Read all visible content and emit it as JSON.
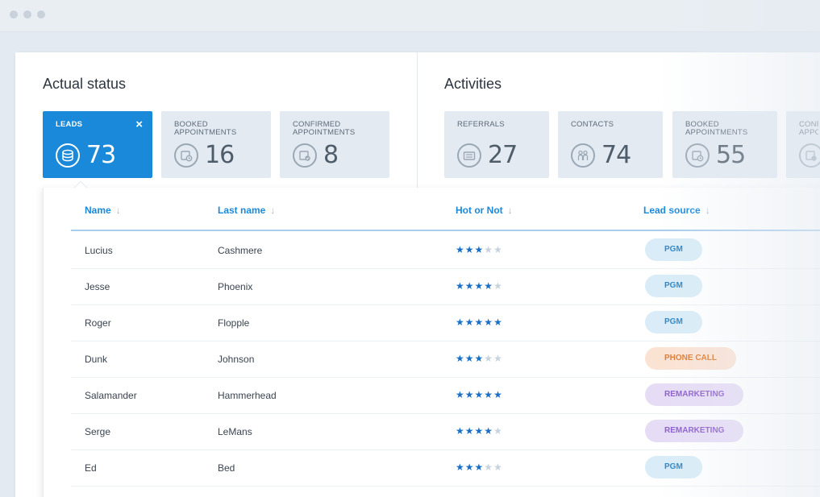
{
  "actual_status": {
    "title": "Actual status",
    "cards": [
      {
        "label": "LEADS",
        "value": "73",
        "icon": "database-icon",
        "active": true
      },
      {
        "label": "BOOKED APPOINTMENTS",
        "value": "16",
        "icon": "calendar-clock-icon",
        "active": false
      },
      {
        "label": "CONFIRMED APPOINTMENTS",
        "value": "8",
        "icon": "calendar-check-icon",
        "active": false
      }
    ]
  },
  "activities": {
    "title": "Activities",
    "cards": [
      {
        "label": "REFERRALS",
        "value": "27",
        "icon": "id-card-icon"
      },
      {
        "label": "CONTACTS",
        "value": "74",
        "icon": "people-icon"
      },
      {
        "label": "BOOKED APPOINTMENTS",
        "value": "55",
        "icon": "calendar-clock-icon"
      },
      {
        "label": "CONF APPO",
        "value": "",
        "icon": "calendar-check-icon"
      }
    ]
  },
  "table": {
    "columns": [
      {
        "label": "Name",
        "arrow": "↓"
      },
      {
        "label": "Last name",
        "arrow": "↓"
      },
      {
        "label": "Hot or Not",
        "arrow": "↓"
      },
      {
        "label": "Lead source",
        "arrow": "↓"
      }
    ],
    "rows": [
      {
        "name": "Lucius",
        "last_name": "Cashmere",
        "rating": 3,
        "source": "PGM"
      },
      {
        "name": "Jesse",
        "last_name": "Phoenix",
        "rating": 4,
        "source": "PGM"
      },
      {
        "name": "Roger",
        "last_name": "Flopple",
        "rating": 5,
        "source": "PGM"
      },
      {
        "name": "Dunk",
        "last_name": "Johnson",
        "rating": 3,
        "source": "PHONE CALL"
      },
      {
        "name": "Salamander",
        "last_name": "Hammerhead",
        "rating": 5,
        "source": "REMARKETING"
      },
      {
        "name": "Serge",
        "last_name": "LeMans",
        "rating": 4,
        "source": "REMARKETING"
      },
      {
        "name": "Ed",
        "last_name": "Bed",
        "rating": 3,
        "source": "PGM"
      }
    ],
    "max_rating": 5
  },
  "badge_colors": {
    "PGM": {
      "bg": "#d9ecf7",
      "fg": "#2a86c8"
    },
    "PHONE CALL": {
      "bg": "#fbe3d4",
      "fg": "#e07a2e"
    },
    "REMARKETING": {
      "bg": "#e6dcf6",
      "fg": "#8a5ccc"
    }
  },
  "close_icon": "×"
}
